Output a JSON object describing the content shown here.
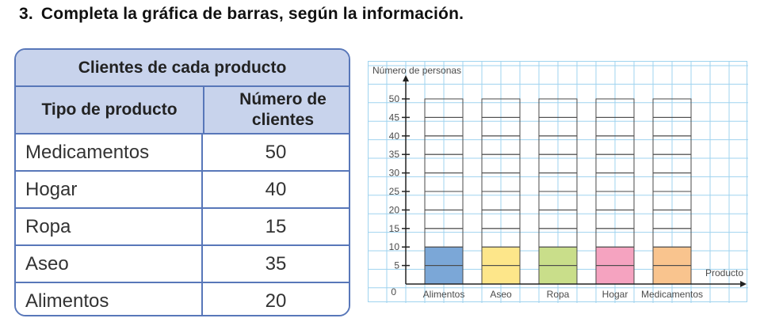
{
  "header": {
    "number": "3.",
    "text": "Completa la gráfica de barras, según la información."
  },
  "table": {
    "caption": "Clientes de cada producto",
    "col1_header": "Tipo de producto",
    "col2_header": "Número de clientes",
    "rows": [
      {
        "product": "Medicamentos",
        "count": "50"
      },
      {
        "product": "Hogar",
        "count": "40"
      },
      {
        "product": "Ropa",
        "count": "15"
      },
      {
        "product": "Aseo",
        "count": "35"
      },
      {
        "product": "Alimentos",
        "count": "20"
      }
    ]
  },
  "chart_data": {
    "type": "bar",
    "ylabel": "Número de personas",
    "xlabel": "Producto",
    "origin_label": "0",
    "categories": [
      "Alimentos",
      "Aseo",
      "Ropa",
      "Hogar",
      "Medicamentos"
    ],
    "values": [
      10,
      10,
      10,
      10,
      10
    ],
    "ylim": [
      0,
      50
    ],
    "yticks": [
      5,
      10,
      15,
      20,
      25,
      30,
      35,
      40,
      45,
      50
    ],
    "bar_colors": [
      "#7ba7d7",
      "#fde68a",
      "#c9de8a",
      "#f5a3c0",
      "#f9c48e"
    ],
    "grid": true,
    "grid_color": "#9fd3ef"
  }
}
